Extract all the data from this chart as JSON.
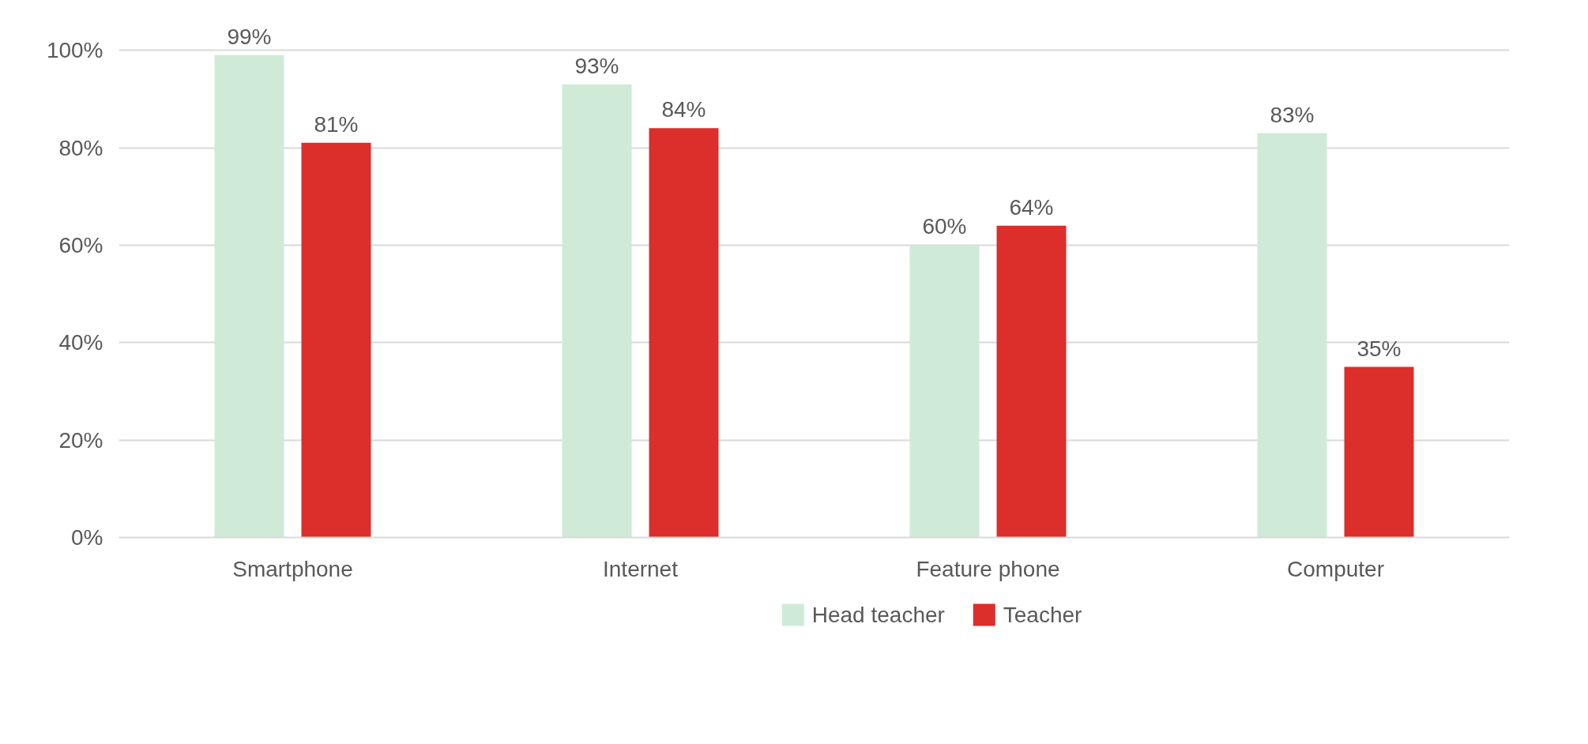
{
  "chart_data": {
    "type": "bar",
    "categories": [
      "Smartphone",
      "Internet",
      "Feature phone",
      "Computer"
    ],
    "series": [
      {
        "name": "Head teacher",
        "color": "#d0ead8",
        "values": [
          99,
          93,
          60,
          83
        ],
        "value_labels": [
          "99%",
          "93%",
          "60%",
          "83%"
        ]
      },
      {
        "name": "Teacher",
        "color": "#dc2e2b",
        "values": [
          81,
          84,
          64,
          35
        ],
        "value_labels": [
          "81%",
          "84%",
          "64%",
          "35%"
        ]
      }
    ],
    "ylim": [
      0,
      100
    ],
    "yticks": [
      {
        "value": 0,
        "label": "0%"
      },
      {
        "value": 20,
        "label": "20%"
      },
      {
        "value": 40,
        "label": "40%"
      },
      {
        "value": 60,
        "label": "60%"
      },
      {
        "value": 80,
        "label": "80%"
      },
      {
        "value": 100,
        "label": "100%"
      }
    ],
    "grid": "y",
    "legend": "bottom"
  }
}
